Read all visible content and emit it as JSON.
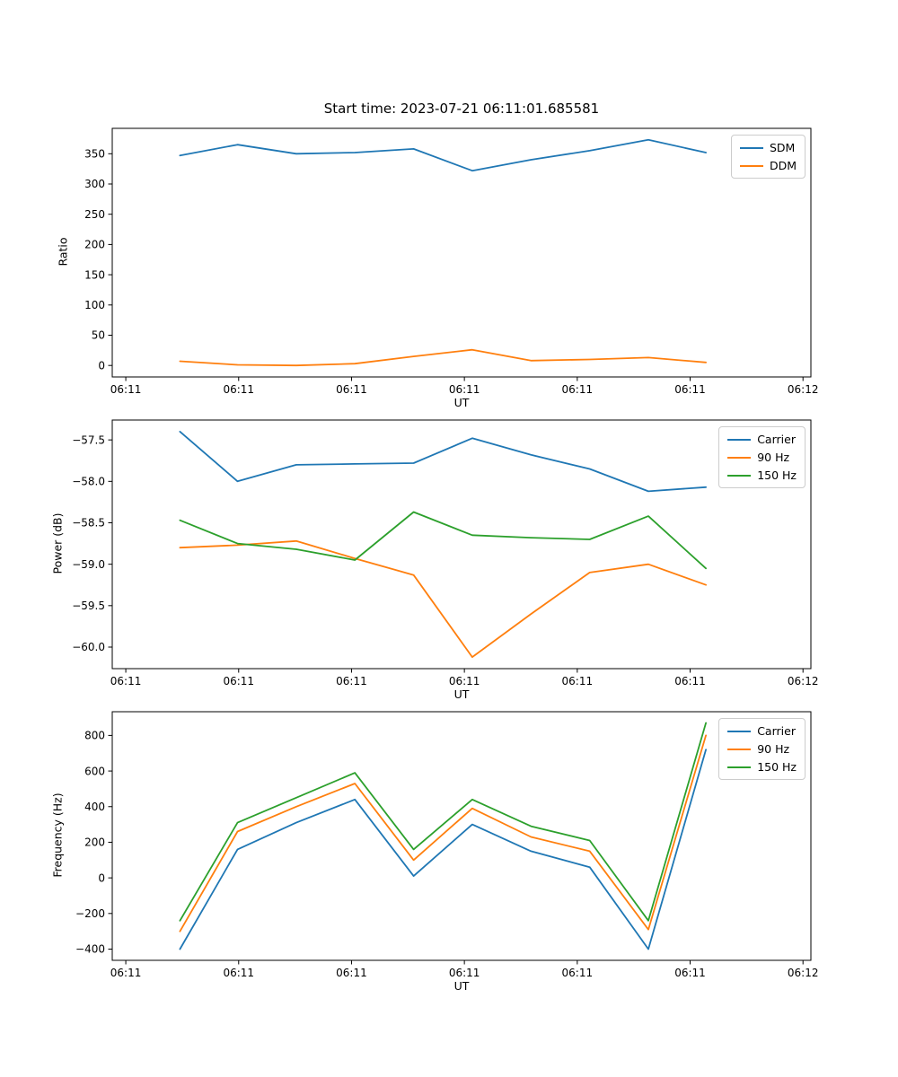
{
  "figure_title": "Start time: 2023-07-21 06:11:01.685581",
  "chart_data": [
    {
      "name": "ratio",
      "type": "line",
      "title": "Start time: 2023-07-21 06:11:01.685581",
      "xlabel": "UT",
      "ylabel": "Ratio",
      "x_note": "seconds after 06:11:00 UT, estimated from tick positions",
      "x": [
        4.8,
        9.9,
        15.1,
        20.3,
        25.5,
        30.7,
        35.9,
        41.1,
        46.3,
        51.4
      ],
      "xlim": [
        -1.2,
        60.7
      ],
      "xticks": [
        0,
        10,
        20,
        30,
        40,
        50,
        60
      ],
      "xtick_labels": [
        "06:11",
        "06:11",
        "06:11",
        "06:11",
        "06:11",
        "06:11",
        "06:12"
      ],
      "ylim": [
        -19,
        392
      ],
      "yticks": [
        0,
        50,
        100,
        150,
        200,
        250,
        300,
        350
      ],
      "ytick_labels": [
        "0",
        "50",
        "100",
        "150",
        "200",
        "250",
        "300",
        "350"
      ],
      "grid": false,
      "legend_position": "upper right",
      "series": [
        {
          "name": "SDM",
          "color": "#1f77b4",
          "values": [
            347,
            365,
            350,
            352,
            358,
            322,
            340,
            355,
            373,
            352
          ]
        },
        {
          "name": "DDM",
          "color": "#ff7f0e",
          "values": [
            7,
            1,
            0,
            3,
            15,
            26,
            8,
            10,
            13,
            5
          ]
        }
      ]
    },
    {
      "name": "power",
      "type": "line",
      "title": "",
      "xlabel": "UT",
      "ylabel": "Power (dB)",
      "x": [
        4.8,
        9.9,
        15.1,
        20.3,
        25.5,
        30.7,
        35.9,
        41.1,
        46.3,
        51.4
      ],
      "xlim": [
        -1.2,
        60.7
      ],
      "xticks": [
        0,
        10,
        20,
        30,
        40,
        50,
        60
      ],
      "xtick_labels": [
        "06:11",
        "06:11",
        "06:11",
        "06:11",
        "06:11",
        "06:11",
        "06:12"
      ],
      "ylim": [
        -60.26,
        -57.26
      ],
      "yticks": [
        -60.0,
        -59.5,
        -59.0,
        -58.5,
        -58.0,
        -57.5
      ],
      "ytick_labels": [
        "−60.0",
        "−59.5",
        "−59.0",
        "−58.5",
        "−58.0",
        "−57.5"
      ],
      "grid": false,
      "legend_position": "upper right",
      "series": [
        {
          "name": "Carrier",
          "color": "#1f77b4",
          "values": [
            -57.4,
            -58.0,
            -57.8,
            -57.79,
            -57.78,
            -57.48,
            -57.68,
            -57.85,
            -58.12,
            -58.07
          ]
        },
        {
          "name": "90 Hz",
          "color": "#ff7f0e",
          "values": [
            -58.8,
            -58.77,
            -58.72,
            -58.93,
            -59.13,
            -60.12,
            -59.6,
            -59.1,
            -59.0,
            -59.25
          ]
        },
        {
          "name": "150 Hz",
          "color": "#2ca02c",
          "values": [
            -58.47,
            -58.75,
            -58.82,
            -58.95,
            -58.37,
            -58.65,
            -58.68,
            -58.7,
            -58.42,
            -59.05
          ]
        }
      ]
    },
    {
      "name": "frequency",
      "type": "line",
      "title": "",
      "xlabel": "UT",
      "ylabel": "Frequency (Hz)",
      "x": [
        4.8,
        9.9,
        15.1,
        20.3,
        25.5,
        30.7,
        35.9,
        41.1,
        46.3,
        51.4
      ],
      "xlim": [
        -1.2,
        60.7
      ],
      "xticks": [
        0,
        10,
        20,
        30,
        40,
        50,
        60
      ],
      "xtick_labels": [
        "06:11",
        "06:11",
        "06:11",
        "06:11",
        "06:11",
        "06:11",
        "06:12"
      ],
      "ylim": [
        -463,
        933
      ],
      "yticks": [
        -400,
        -200,
        0,
        200,
        400,
        600,
        800
      ],
      "ytick_labels": [
        "−400",
        "−200",
        "0",
        "200",
        "400",
        "600",
        "800"
      ],
      "grid": false,
      "legend_position": "upper right",
      "series": [
        {
          "name": "Carrier",
          "color": "#1f77b4",
          "values": [
            -400,
            160,
            310,
            440,
            10,
            300,
            150,
            60,
            -400,
            720
          ]
        },
        {
          "name": "90 Hz",
          "color": "#ff7f0e",
          "values": [
            -300,
            260,
            400,
            530,
            100,
            390,
            230,
            150,
            -290,
            800
          ]
        },
        {
          "name": "150 Hz",
          "color": "#2ca02c",
          "values": [
            -240,
            310,
            450,
            590,
            160,
            440,
            290,
            210,
            -240,
            870
          ]
        }
      ]
    }
  ]
}
